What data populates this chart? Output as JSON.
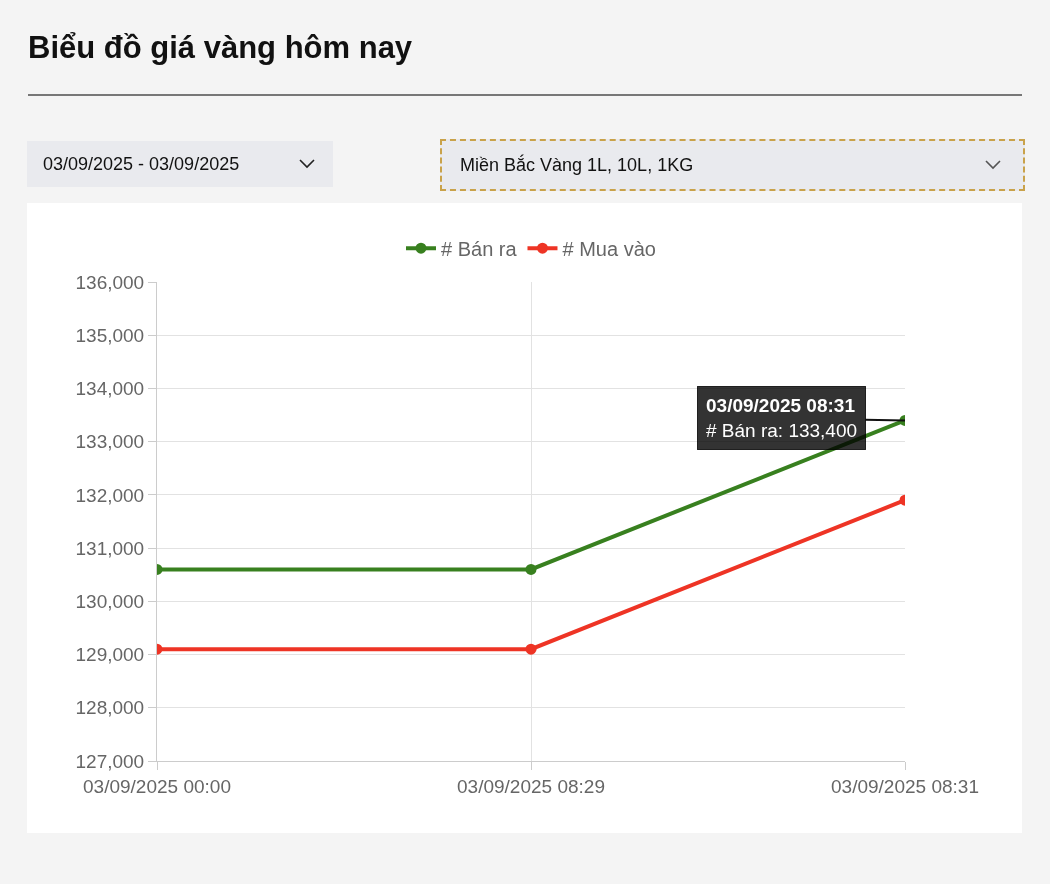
{
  "chart_data": {
    "type": "line",
    "title": "Biểu đồ giá vàng hôm nay",
    "categories": [
      "03/09/2025 00:00",
      "03/09/2025 08:29",
      "03/09/2025 08:31"
    ],
    "series": [
      {
        "name": "# Bán ra",
        "color": "#38801f",
        "values": [
          130600,
          130600,
          133400
        ]
      },
      {
        "name": "# Mua vào",
        "color": "#ee3425",
        "values": [
          129100,
          129100,
          131900
        ]
      }
    ],
    "ylim": [
      127000,
      136000
    ],
    "yticks": [
      {
        "value": 127000,
        "label": "127,000"
      },
      {
        "value": 128000,
        "label": "128,000"
      },
      {
        "value": 129000,
        "label": "129,000"
      },
      {
        "value": 130000,
        "label": "130,000"
      },
      {
        "value": 131000,
        "label": "131,000"
      },
      {
        "value": 132000,
        "label": "132,000"
      },
      {
        "value": 133000,
        "label": "133,000"
      },
      {
        "value": 134000,
        "label": "134,000"
      },
      {
        "value": 135000,
        "label": "135,000"
      },
      {
        "value": 136000,
        "label": "136,000"
      }
    ],
    "grid": true,
    "legend": "top",
    "marker": "circle",
    "line_style": "solid",
    "annotations": [
      "03/09/2025 - 03/09/2025",
      "Miền Bắc Vàng 1L, 10L, 1KG",
      {
        "text": "03/09/2025 08:31\n# Bán ra: 133,400",
        "x": "03/09/2025 08:31",
        "y": 133400
      }
    ]
  }
}
